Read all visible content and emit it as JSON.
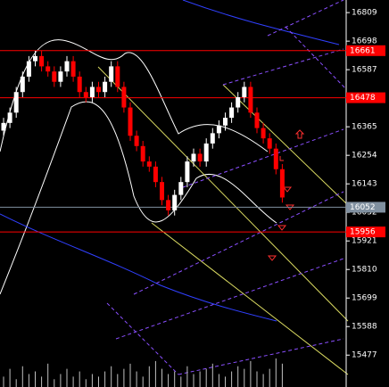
{
  "chart_data": {
    "type": "candlestick",
    "open": [
      16350,
      16380,
      16420,
      16500,
      16560,
      16620,
      16640,
      16600,
      16580,
      16540,
      16580,
      16620,
      16560,
      16500,
      16480,
      16520,
      16500,
      16540,
      16600,
      16520,
      16440,
      16330,
      16290,
      16230,
      16210,
      16150,
      16080,
      16040,
      16100,
      16150,
      16230,
      16260,
      16230,
      16300,
      16340,
      16370,
      16400,
      16440,
      16480,
      16520,
      16420,
      16360,
      16320,
      16280,
      16200
    ],
    "high": [
      16400,
      16440,
      16520,
      16580,
      16640,
      16660,
      16660,
      16620,
      16600,
      16600,
      16640,
      16640,
      16580,
      16520,
      16540,
      16540,
      16560,
      16620,
      16620,
      16540,
      16460,
      16350,
      16310,
      16250,
      16230,
      16170,
      16100,
      16120,
      16170,
      16250,
      16280,
      16280,
      16320,
      16360,
      16390,
      16420,
      16460,
      16500,
      16540,
      16540,
      16440,
      16380,
      16340,
      16300,
      16220
    ],
    "low": [
      16330,
      16360,
      16400,
      16480,
      16540,
      16600,
      16580,
      16560,
      16520,
      16520,
      16560,
      16540,
      16480,
      16460,
      16460,
      16480,
      16480,
      16520,
      16500,
      16420,
      16310,
      16270,
      16210,
      16190,
      16130,
      16060,
      16020,
      16020,
      16080,
      16130,
      16210,
      16210,
      16210,
      16280,
      16320,
      16350,
      16380,
      16420,
      16460,
      16400,
      16340,
      16300,
      16260,
      16180,
      16070
    ],
    "close": [
      16380,
      16420,
      16500,
      16560,
      16620,
      16640,
      16600,
      16580,
      16540,
      16580,
      16620,
      16560,
      16500,
      16480,
      16520,
      16500,
      16540,
      16600,
      16520,
      16440,
      16330,
      16290,
      16230,
      16210,
      16150,
      16080,
      16040,
      16100,
      16150,
      16230,
      16260,
      16230,
      16300,
      16340,
      16370,
      16400,
      16440,
      16480,
      16520,
      16420,
      16360,
      16320,
      16280,
      16200,
      16090
    ],
    "volume": [
      4,
      7,
      3,
      8,
      5,
      6,
      4,
      9,
      3,
      5,
      7,
      4,
      6,
      3,
      5,
      4,
      6,
      8,
      5,
      7,
      9,
      6,
      4,
      8,
      10,
      7,
      5,
      6,
      4,
      8,
      5,
      6,
      7,
      9,
      5,
      4,
      6,
      8,
      7,
      10,
      6,
      5,
      7,
      11,
      9
    ],
    "ylim": [
      15353,
      16858
    ],
    "yticks": [
      16809,
      16698,
      16587,
      16476,
      16365,
      16254,
      16143,
      16032,
      15921,
      15810,
      15699,
      15588,
      15477
    ],
    "levels": [
      {
        "value": 16661,
        "color": "#ff0000"
      },
      {
        "value": 16478,
        "color": "#ff0000"
      },
      {
        "value": 16052,
        "color": "#8090a0"
      },
      {
        "value": 15956,
        "color": "#ff0000"
      }
    ],
    "bull_color": "#ffffff",
    "bear_color": "#ff0000",
    "volume_color": "#c0c0c0"
  }
}
